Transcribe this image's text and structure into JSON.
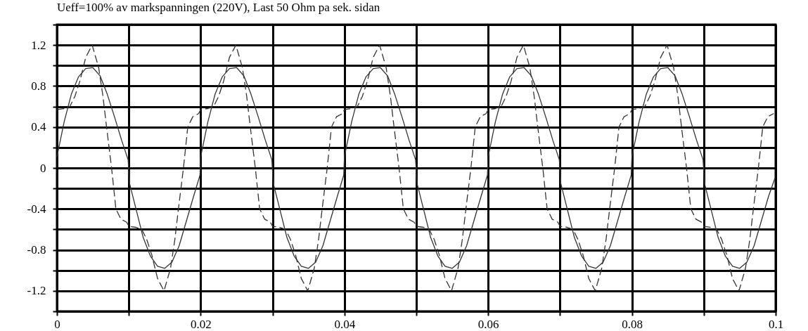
{
  "chart_data": {
    "type": "line",
    "title": "Ueff=100% av markspanningen (220V), Last 50 Ohm pa sek. sidan",
    "grid": true,
    "xlim": [
      0,
      0.1
    ],
    "ylim": [
      -1.4,
      1.4
    ],
    "xticks": [
      0,
      {
        "value": 0.01,
        "label": null
      },
      0.02,
      {
        "value": 0.03,
        "label": null
      },
      0.04,
      {
        "value": 0.05,
        "label": null
      },
      0.06,
      {
        "value": 0.07,
        "label": null
      },
      0.08,
      {
        "value": 0.09,
        "label": null
      },
      0.1
    ],
    "yticks": [
      {
        "value": -1.4,
        "label": null
      },
      -1.2,
      {
        "value": -1,
        "label": null
      },
      -0.8,
      {
        "value": -0.6,
        "label": null
      },
      -0.4,
      {
        "value": -0.2,
        "label": null
      },
      0,
      {
        "value": 0.2,
        "label": null
      },
      0.4,
      {
        "value": 0.6,
        "label": null
      },
      0.8,
      {
        "value": 1,
        "label": null
      },
      1.2,
      {
        "value": 1.4,
        "label": null
      }
    ],
    "series": [
      {
        "color": "#333333",
        "line_style": "solid",
        "x": [
          0,
          0.001,
          0.002,
          0.003,
          0.004,
          0.005,
          0.006,
          0.007,
          0.008,
          0.009,
          0.0099,
          0.0101,
          0.011,
          0.012,
          0.013,
          0.014,
          0.015,
          0.016,
          0.017,
          0.018,
          0.019,
          0.0199,
          0.02,
          0.021,
          0.022,
          0.023,
          0.024,
          0.025,
          0.026,
          0.027,
          0.028,
          0.029,
          0.0299,
          0.0301,
          0.031,
          0.032,
          0.033,
          0.034,
          0.035,
          0.036,
          0.037,
          0.038,
          0.039,
          0.0399,
          0.04,
          0.041,
          0.042,
          0.043,
          0.044,
          0.045,
          0.046,
          0.047,
          0.048,
          0.049,
          0.0499,
          0.0501,
          0.051,
          0.052,
          0.053,
          0.054,
          0.055,
          0.056,
          0.057,
          0.058,
          0.059,
          0.0599,
          0.06,
          0.061,
          0.062,
          0.063,
          0.064,
          0.065,
          0.066,
          0.067,
          0.068,
          0.069,
          0.0699,
          0.0701,
          0.071,
          0.072,
          0.073,
          0.074,
          0.075,
          0.076,
          0.077,
          0.078,
          0.079,
          0.0799,
          0.08,
          0.081,
          0.082,
          0.083,
          0.084,
          0.085,
          0.086,
          0.087,
          0.088,
          0.089,
          0.0899,
          0.0901,
          0.091,
          0.092,
          0.093,
          0.094,
          0.095,
          0.096,
          0.097,
          0.098,
          0.099,
          0.0999
        ],
        "values": [
          0.11,
          0.45,
          0.72,
          0.89,
          0.97,
          0.98,
          0.9,
          0.72,
          0.5,
          0.27,
          0.08,
          -0.15,
          -0.4,
          -0.68,
          -0.86,
          -0.96,
          -0.98,
          -0.92,
          -0.76,
          -0.52,
          -0.28,
          -0.07,
          0.11,
          0.45,
          0.72,
          0.89,
          0.97,
          0.98,
          0.9,
          0.72,
          0.5,
          0.27,
          0.08,
          -0.15,
          -0.4,
          -0.68,
          -0.86,
          -0.96,
          -0.98,
          -0.92,
          -0.76,
          -0.52,
          -0.28,
          -0.07,
          0.11,
          0.45,
          0.72,
          0.89,
          0.97,
          0.98,
          0.9,
          0.72,
          0.5,
          0.27,
          0.08,
          -0.15,
          -0.4,
          -0.68,
          -0.86,
          -0.96,
          -0.98,
          -0.92,
          -0.76,
          -0.52,
          -0.28,
          -0.07,
          0.11,
          0.45,
          0.72,
          0.89,
          0.97,
          0.98,
          0.9,
          0.72,
          0.5,
          0.27,
          0.08,
          -0.15,
          -0.4,
          -0.68,
          -0.86,
          -0.96,
          -0.98,
          -0.92,
          -0.76,
          -0.52,
          -0.28,
          -0.07,
          0.11,
          0.45,
          0.72,
          0.89,
          0.97,
          0.98,
          0.9,
          0.72,
          0.5,
          0.27,
          0.08,
          -0.15,
          -0.4,
          -0.68,
          -0.86,
          -0.96,
          -0.98,
          -0.92,
          -0.76,
          -0.52,
          -0.28,
          -0.1
        ]
      },
      {
        "color": "#333333",
        "line_style": "dashed",
        "x": [
          0,
          0.001,
          0.0018,
          0.0025,
          0.0032,
          0.004,
          0.0049,
          0.0058,
          0.0064,
          0.0069,
          0.0076,
          0.0082,
          0.0089,
          0.0097,
          0.01,
          0.011,
          0.0118,
          0.0125,
          0.0132,
          0.014,
          0.0149,
          0.0158,
          0.0164,
          0.0169,
          0.0176,
          0.0182,
          0.0189,
          0.0197,
          0.02,
          0.021,
          0.0218,
          0.0225,
          0.0232,
          0.024,
          0.0249,
          0.0258,
          0.0264,
          0.0269,
          0.0276,
          0.0282,
          0.0289,
          0.0297,
          0.03,
          0.031,
          0.0318,
          0.0325,
          0.0332,
          0.034,
          0.0349,
          0.0358,
          0.0364,
          0.0369,
          0.0376,
          0.0382,
          0.0389,
          0.0397,
          0.04,
          0.041,
          0.0418,
          0.0425,
          0.0432,
          0.044,
          0.0449,
          0.0458,
          0.0464,
          0.0469,
          0.0476,
          0.0482,
          0.0489,
          0.0497,
          0.05,
          0.051,
          0.0518,
          0.0525,
          0.0532,
          0.054,
          0.0549,
          0.0558,
          0.0564,
          0.0569,
          0.0576,
          0.0582,
          0.0589,
          0.0597,
          0.06,
          0.061,
          0.0618,
          0.0625,
          0.0632,
          0.064,
          0.0649,
          0.0658,
          0.0664,
          0.0669,
          0.0676,
          0.0682,
          0.0689,
          0.0697,
          0.07,
          0.071,
          0.0718,
          0.0725,
          0.0732,
          0.074,
          0.0749,
          0.0758,
          0.0764,
          0.0769,
          0.0776,
          0.0782,
          0.0789,
          0.0797,
          0.08,
          0.081,
          0.0818,
          0.0825,
          0.0832,
          0.084,
          0.0849,
          0.0858,
          0.0864,
          0.0869,
          0.0876,
          0.0882,
          0.0889,
          0.0897,
          0.09,
          0.091,
          0.0918,
          0.0925,
          0.0932,
          0.094,
          0.0949,
          0.0958,
          0.0964,
          0.0969,
          0.0976,
          0.0982,
          0.0989,
          0.0997
        ],
        "values": [
          0.57,
          0.58,
          0.6,
          0.7,
          0.85,
          1.08,
          1.2,
          0.98,
          0.7,
          0.4,
          0,
          -0.4,
          -0.5,
          -0.53,
          -0.57,
          -0.58,
          -0.6,
          -0.7,
          -0.85,
          -1.08,
          -1.2,
          -0.98,
          -0.7,
          -0.4,
          0,
          0.4,
          0.5,
          0.53,
          0.57,
          0.58,
          0.6,
          0.7,
          0.85,
          1.08,
          1.2,
          0.98,
          0.7,
          0.4,
          0,
          -0.4,
          -0.5,
          -0.53,
          -0.57,
          -0.58,
          -0.6,
          -0.7,
          -0.85,
          -1.08,
          -1.2,
          -0.98,
          -0.7,
          -0.4,
          0,
          0.4,
          0.5,
          0.53,
          0.57,
          0.58,
          0.6,
          0.7,
          0.85,
          1.08,
          1.2,
          0.98,
          0.7,
          0.4,
          0,
          -0.4,
          -0.5,
          -0.53,
          -0.57,
          -0.58,
          -0.6,
          -0.7,
          -0.85,
          -1.08,
          -1.2,
          -0.98,
          -0.7,
          -0.4,
          0,
          0.4,
          0.5,
          0.53,
          0.57,
          0.58,
          0.6,
          0.7,
          0.85,
          1.08,
          1.2,
          0.98,
          0.7,
          0.4,
          0,
          -0.4,
          -0.5,
          -0.53,
          -0.57,
          -0.58,
          -0.6,
          -0.7,
          -0.85,
          -1.08,
          -1.2,
          -0.98,
          -0.7,
          -0.4,
          0,
          0.4,
          0.5,
          0.53,
          0.57,
          0.58,
          0.6,
          0.7,
          0.85,
          1.08,
          1.2,
          0.98,
          0.7,
          0.4,
          0,
          -0.4,
          -0.5,
          -0.53,
          -0.57,
          -0.58,
          -0.6,
          -0.7,
          -0.85,
          -1.08,
          -1.2,
          -0.98,
          -0.7,
          -0.4,
          0,
          0.4,
          0.5,
          0.53
        ]
      }
    ]
  }
}
